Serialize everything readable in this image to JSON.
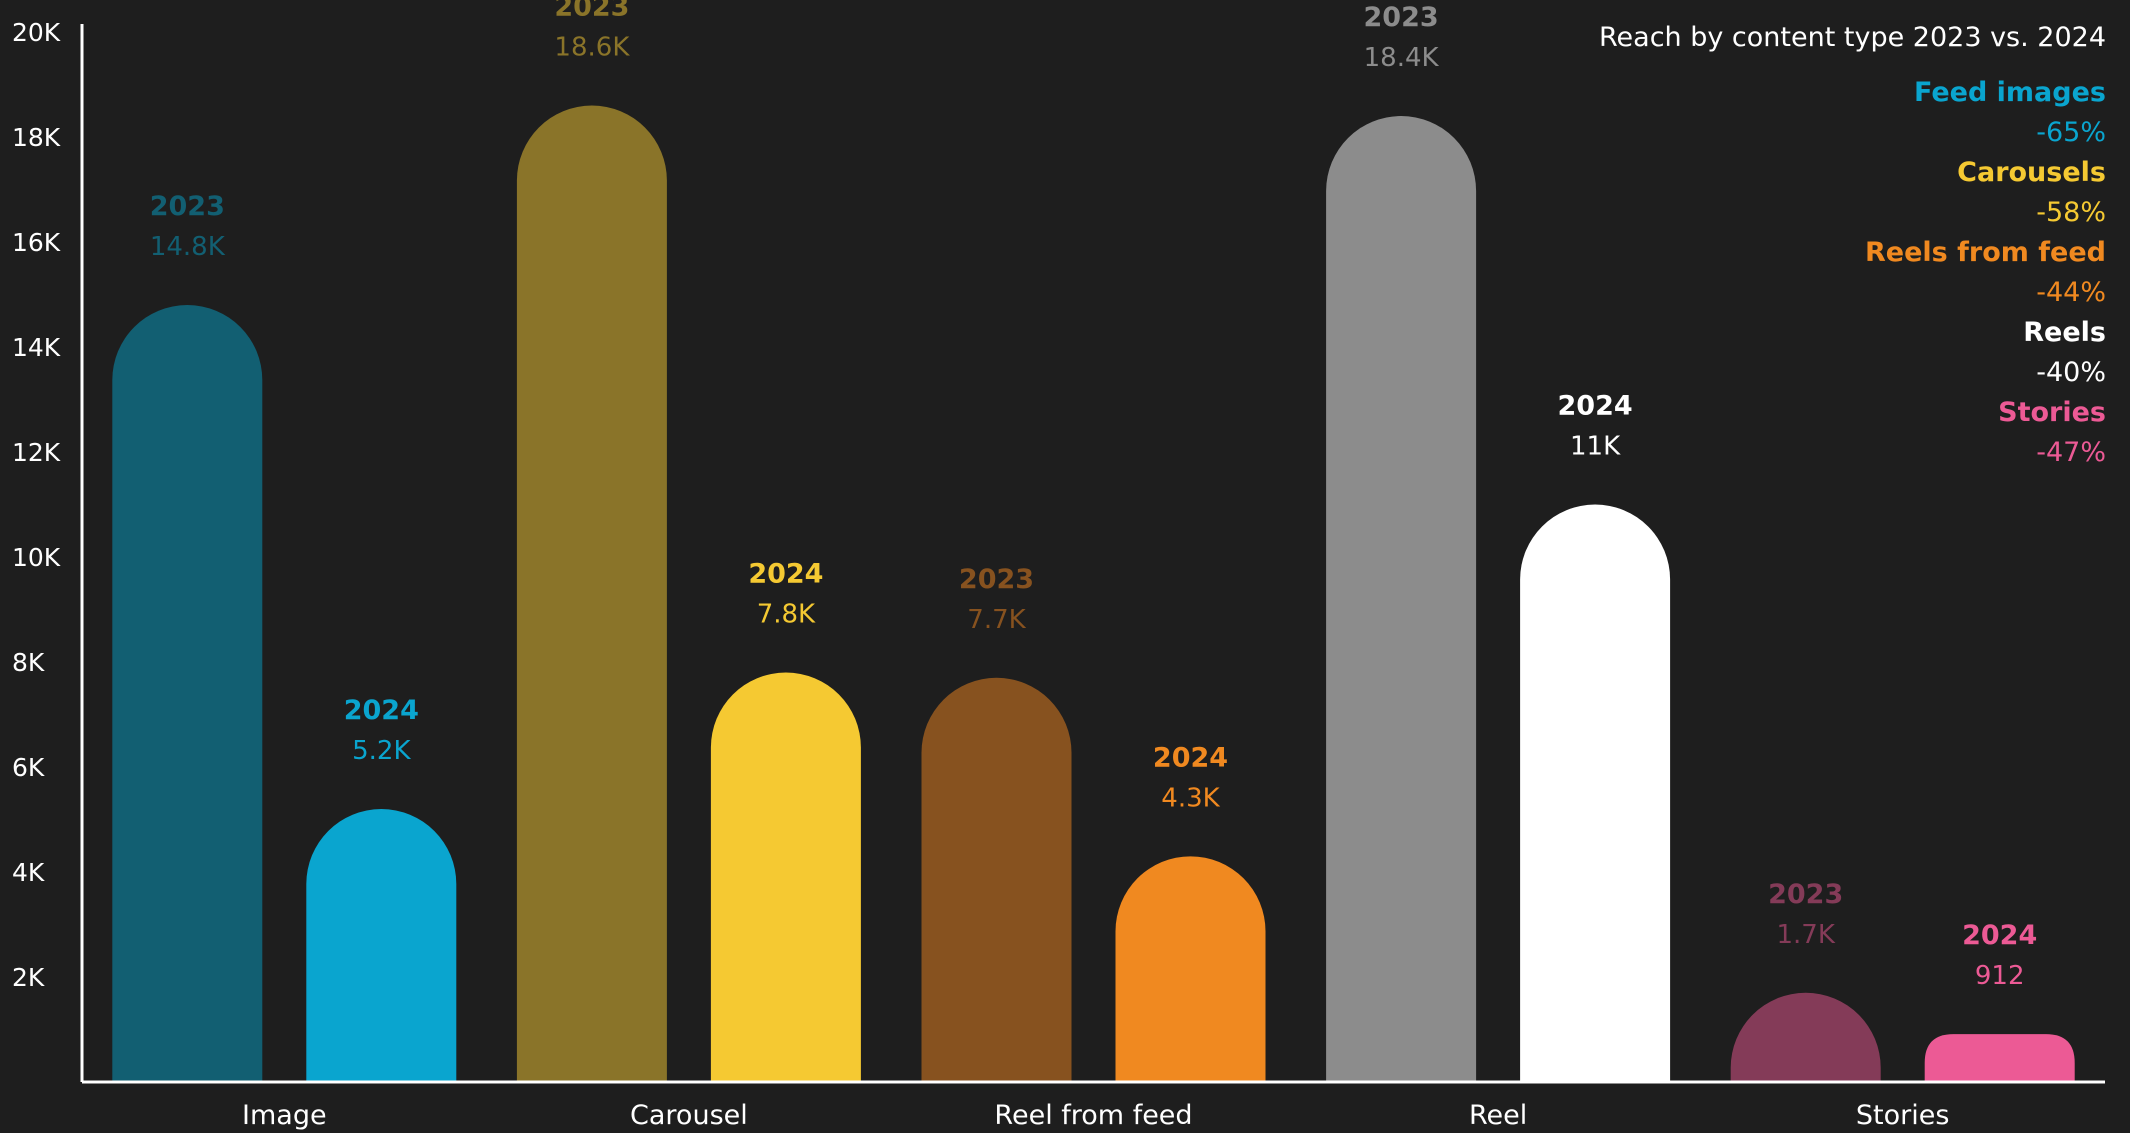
{
  "chart_data": {
    "type": "bar",
    "title": "Reach by content type 2023 vs. 2024",
    "categories": [
      "Image",
      "Carousel",
      "Reel from feed",
      "Reel",
      "Stories"
    ],
    "series": [
      {
        "name": "2023",
        "values": [
          14800,
          18600,
          7700,
          18400,
          1700
        ],
        "labels": [
          "14.8K",
          "18.6K",
          "7.7K",
          "18.4K",
          "1.7K"
        ],
        "colors": [
          "#125f72",
          "#8a7429",
          "#87521f",
          "#8c8c8c",
          "#843b58"
        ]
      },
      {
        "name": "2024",
        "values": [
          5200,
          7800,
          4300,
          11000,
          912
        ],
        "labels": [
          "5.2K",
          "7.8K",
          "4.3K",
          "11K",
          "912"
        ],
        "colors": [
          "#0aa5cf",
          "#f5c932",
          "#f08920",
          "#ffffff",
          "#ec5a95"
        ]
      }
    ],
    "ylim": [
      0,
      20000
    ],
    "yticks": [
      2000,
      4000,
      6000,
      8000,
      10000,
      12000,
      14000,
      16000,
      18000,
      20000
    ],
    "ytick_labels": [
      "2K",
      "4K",
      "6K",
      "8K",
      "10K",
      "12K",
      "14K",
      "16K",
      "18K",
      "20K"
    ],
    "xlabel": "",
    "ylabel": "",
    "grid": false,
    "legend": {
      "placement": "top-right",
      "items": [
        {
          "name": "Feed images",
          "change": "-65%",
          "color": "#0aa5cf"
        },
        {
          "name": "Carousels",
          "change": "-58%",
          "color": "#f5c932"
        },
        {
          "name": "Reels from feed",
          "change": "-44%",
          "color": "#f08920"
        },
        {
          "name": "Reels",
          "change": "-40%",
          "color": "#ffffff"
        },
        {
          "name": "Stories",
          "change": "-47%",
          "color": "#ec5a95"
        }
      ]
    }
  }
}
